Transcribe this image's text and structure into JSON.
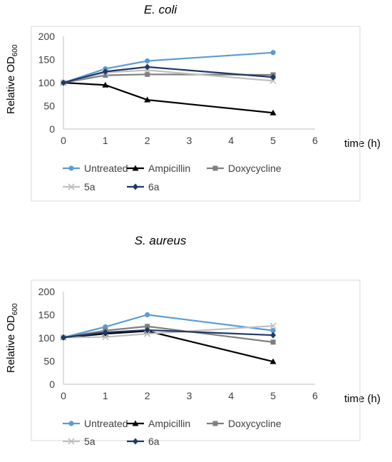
{
  "ylabel_main": "Relative OD",
  "ylabel_sub": "600",
  "xlabel": "time (h)",
  "series_styles": [
    {
      "name": "Untreated",
      "color": "#5b9bd5",
      "marker": "circle"
    },
    {
      "name": "Ampicillin",
      "color": "#000000",
      "marker": "triangle"
    },
    {
      "name": "Doxycycline",
      "color": "#7f7f7f",
      "marker": "square"
    },
    {
      "name": "5a",
      "color": "#bfbfbf",
      "marker": "x"
    },
    {
      "name": "6a",
      "color": "#1f3864",
      "marker": "diamond"
    }
  ],
  "chart_data": [
    {
      "type": "line",
      "title": "E. coli",
      "xlabel": "time (h)",
      "ylabel": "Relative OD600",
      "xlim": [
        0,
        6
      ],
      "ylim": [
        0,
        200
      ],
      "xticks": [
        0,
        1,
        2,
        3,
        4,
        5,
        6
      ],
      "yticks": [
        0,
        50,
        100,
        150,
        200
      ],
      "legend": "bottom",
      "grid": false,
      "x": [
        0,
        1,
        2,
        5
      ],
      "series": [
        {
          "name": "Untreated",
          "values": [
            100,
            130,
            147,
            165
          ]
        },
        {
          "name": "Ampicillin",
          "values": [
            100,
            95,
            63,
            35
          ]
        },
        {
          "name": "Doxycycline",
          "values": [
            100,
            116,
            118,
            117
          ]
        },
        {
          "name": "5a",
          "values": [
            100,
            122,
            127,
            104
          ]
        },
        {
          "name": "6a",
          "values": [
            100,
            124,
            134,
            112
          ]
        }
      ]
    },
    {
      "type": "line",
      "title": "S. aureus",
      "xlabel": "time (h)",
      "ylabel": "Relative OD600",
      "xlim": [
        0,
        6
      ],
      "ylim": [
        0,
        200
      ],
      "xticks": [
        0,
        1,
        2,
        3,
        4,
        5,
        6
      ],
      "yticks": [
        0,
        50,
        100,
        150,
        200
      ],
      "legend": "bottom",
      "grid": false,
      "x": [
        0,
        1,
        2,
        5
      ],
      "series": [
        {
          "name": "Untreated",
          "values": [
            101,
            124,
            150,
            116
          ]
        },
        {
          "name": "Ampicillin",
          "values": [
            101,
            109,
            115,
            49
          ]
        },
        {
          "name": "Doxycycline",
          "values": [
            101,
            116,
            125,
            91
          ]
        },
        {
          "name": "5a",
          "values": [
            101,
            102,
            109,
            126
          ]
        },
        {
          "name": "6a",
          "values": [
            101,
            112,
            117,
            106
          ]
        }
      ]
    }
  ]
}
